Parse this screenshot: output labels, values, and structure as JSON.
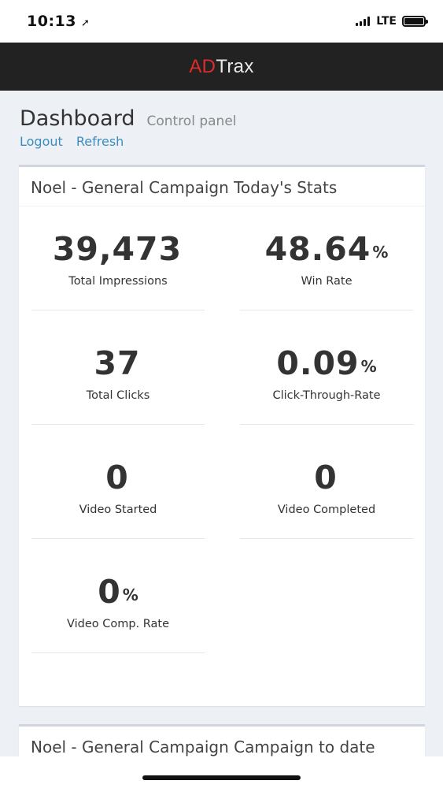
{
  "status_bar": {
    "time": "10:13",
    "location_icon": "navigation-arrow-icon",
    "network": "LTE"
  },
  "app": {
    "logo_ad": "AD",
    "logo_trax": "Trax",
    "brand_color": "#dd2c2c",
    "header_bg": "#222222"
  },
  "page": {
    "title": "Dashboard",
    "subtitle": "Control panel",
    "links": {
      "logout": "Logout",
      "refresh": "Refresh"
    }
  },
  "today_stats": {
    "title": "Noel - General Campaign Today's Stats",
    "stats": [
      {
        "value": "39,473",
        "suffix": "",
        "label": "Total Impressions"
      },
      {
        "value": "48.64",
        "suffix": "%",
        "label": "Win Rate"
      },
      {
        "value": "37",
        "suffix": "",
        "label": "Total Clicks"
      },
      {
        "value": "0.09",
        "suffix": "%",
        "label": "Click-Through-Rate"
      },
      {
        "value": "0",
        "suffix": "",
        "label": "Video Started"
      },
      {
        "value": "0",
        "suffix": "",
        "label": "Video Completed"
      },
      {
        "value": "0",
        "suffix": "%",
        "label": "Video Comp. Rate"
      }
    ]
  },
  "to_date_stats": {
    "title": "Noel - General Campaign Campaign to date"
  }
}
